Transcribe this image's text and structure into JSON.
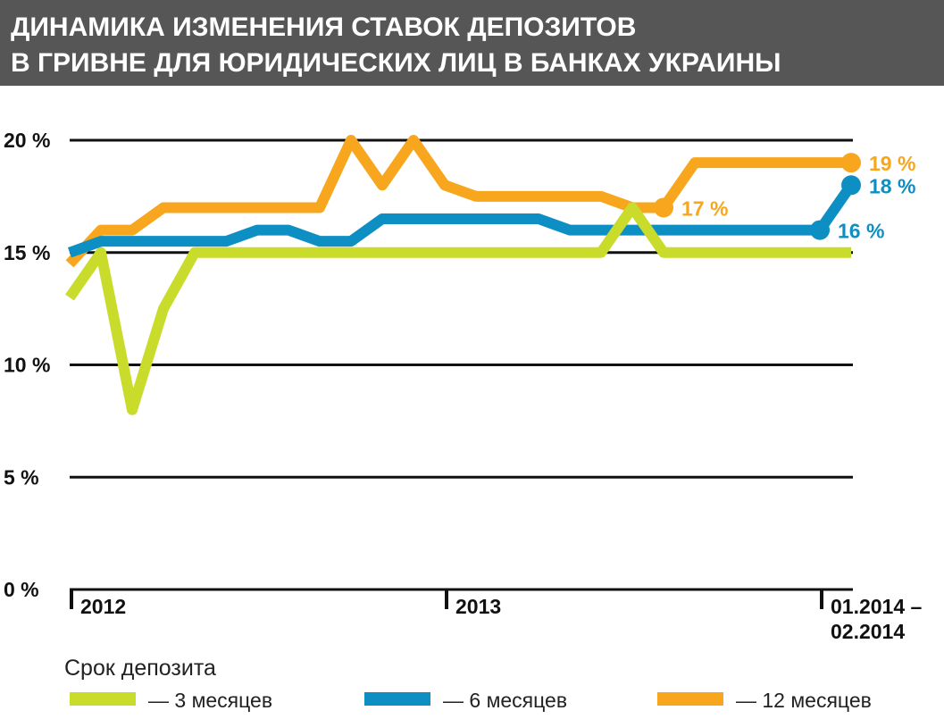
{
  "chart_data": {
    "type": "line",
    "title": [
      "ДИНАМИКА ИЗМЕНЕНИЯ СТАВОК ДЕПОЗИТОВ",
      "В ГРИВНЕ ДЛЯ ЮРИДИЧЕСКИХ ЛИЦ В БАНКАХ УКРАИНЫ"
    ],
    "categories": [
      "2012",
      null,
      null,
      null,
      null,
      null,
      null,
      null,
      null,
      null,
      null,
      null,
      "2013",
      null,
      null,
      null,
      null,
      null,
      null,
      null,
      null,
      null,
      null,
      null,
      "01.2014 –\n02.2014",
      null
    ],
    "series": [
      {
        "name": "— 3 месяцев",
        "color": "#c9dc2c",
        "values": [
          13,
          15,
          8,
          12.5,
          15,
          15,
          15,
          15,
          15,
          15,
          15,
          15,
          15,
          15,
          15,
          15,
          15,
          15,
          17,
          15,
          15,
          15,
          15,
          15,
          15,
          15
        ]
      },
      {
        "name": "— 6 месяцев",
        "color": "#0d8fc4",
        "values": [
          15,
          15.5,
          15.5,
          15.5,
          15.5,
          15.5,
          16,
          16,
          15.5,
          15.5,
          16.5,
          16.5,
          16.5,
          16.5,
          16.5,
          16.5,
          16,
          16,
          16,
          16,
          16,
          16,
          16,
          16,
          16,
          18
        ],
        "value_labels": [
          null,
          null,
          null,
          null,
          null,
          null,
          null,
          null,
          null,
          null,
          null,
          null,
          null,
          null,
          null,
          null,
          null,
          null,
          null,
          null,
          null,
          null,
          null,
          null,
          "16 %",
          "18 %"
        ]
      },
      {
        "name": "— 12 месяцев",
        "color": "#f7a61e",
        "values": [
          14.5,
          16,
          16,
          17,
          17,
          17,
          17,
          17,
          17,
          20,
          18,
          20,
          18,
          17.5,
          17.5,
          17.5,
          17.5,
          17.5,
          17,
          17,
          19,
          19,
          19,
          19,
          19,
          19
        ],
        "value_labels": [
          null,
          null,
          null,
          null,
          null,
          null,
          null,
          null,
          null,
          null,
          null,
          null,
          null,
          null,
          null,
          null,
          null,
          null,
          null,
          "17 %",
          null,
          null,
          null,
          null,
          null,
          "19 %"
        ]
      }
    ],
    "ylim": [
      0,
      20
    ],
    "yticks": [
      {
        "value": 0,
        "label": "0 %"
      },
      {
        "value": 5,
        "label": "5 %"
      },
      {
        "value": 10,
        "label": "10 %"
      },
      {
        "value": 15,
        "label": "15 %"
      },
      {
        "value": 20,
        "label": "20 %"
      }
    ],
    "grid": true,
    "legend_title": "Срок депозита"
  }
}
